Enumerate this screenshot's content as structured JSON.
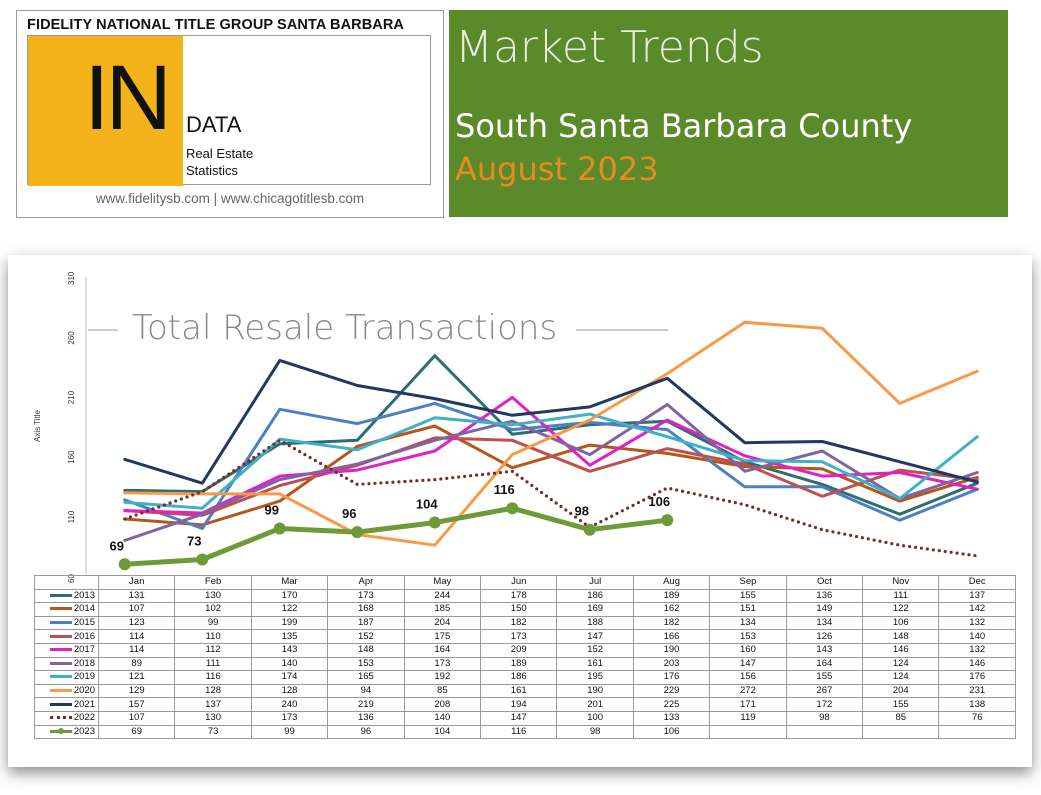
{
  "header": {
    "company": "FIDELITY NATIONAL TITLE GROUP SANTA BARBARA",
    "logo_big": "IN",
    "logo_word": "DATA",
    "logo_sub1": "Real Estate",
    "logo_sub2": "Statistics",
    "urls": "www.fidelitysb.com | www.chicagotitlesb.com",
    "title": "Market Trends",
    "region": "South Santa Barbara County",
    "month": "August 2023",
    "colors": {
      "logo_yellow": "#f4b31a",
      "title_green": "#5a8a2a",
      "month_orange": "#e88a22"
    }
  },
  "chart_data": {
    "type": "line",
    "title": "Total Resale Transactions",
    "ylabel": "Axis Title",
    "xlabel": "",
    "ylim": [
      60,
      310
    ],
    "yticks": [
      60,
      110,
      160,
      210,
      260,
      310
    ],
    "grid": false,
    "legend": "table-below",
    "categories": [
      "Jan",
      "Feb",
      "Mar",
      "Apr",
      "May",
      "Jun",
      "Jul",
      "Aug",
      "Sep",
      "Oct",
      "Nov",
      "Dec"
    ],
    "series": [
      {
        "name": "2013",
        "color": "#2e6e6e",
        "style": "solid",
        "values": [
          131,
          130,
          170,
          173,
          244,
          178,
          186,
          189,
          155,
          136,
          111,
          137
        ]
      },
      {
        "name": "2014",
        "color": "#b5561a",
        "style": "solid",
        "values": [
          107,
          102,
          122,
          168,
          185,
          150,
          169,
          162,
          151,
          149,
          122,
          142
        ]
      },
      {
        "name": "2015",
        "color": "#4d7fc4",
        "style": "solid",
        "values": [
          123,
          99,
          199,
          187,
          204,
          182,
          188,
          182,
          134,
          134,
          106,
          132
        ]
      },
      {
        "name": "2016",
        "color": "#c0504d",
        "style": "solid",
        "values": [
          114,
          110,
          135,
          152,
          175,
          173,
          147,
          166,
          153,
          126,
          148,
          140
        ]
      },
      {
        "name": "2017",
        "color": "#e020c8",
        "style": "solid",
        "values": [
          114,
          112,
          143,
          148,
          164,
          209,
          152,
          190,
          160,
          143,
          146,
          132
        ]
      },
      {
        "name": "2018",
        "color": "#8064a2",
        "style": "solid",
        "values": [
          89,
          111,
          140,
          153,
          173,
          189,
          161,
          203,
          147,
          164,
          124,
          146
        ]
      },
      {
        "name": "2019",
        "color": "#3fb0c8",
        "style": "solid",
        "values": [
          121,
          116,
          174,
          165,
          192,
          186,
          195,
          176,
          156,
          155,
          124,
          176
        ]
      },
      {
        "name": "2020",
        "color": "#f79a46",
        "style": "solid",
        "values": [
          129,
          128,
          128,
          94,
          85,
          161,
          190,
          229,
          272,
          267,
          204,
          231
        ]
      },
      {
        "name": "2021",
        "color": "#1f3864",
        "style": "solid",
        "values": [
          157,
          137,
          240,
          219,
          208,
          194,
          201,
          225,
          171,
          172,
          155,
          138
        ]
      },
      {
        "name": "2022",
        "color": "#7b2a2a",
        "style": "dotted",
        "values": [
          107,
          130,
          173,
          136,
          140,
          147,
          100,
          133,
          119,
          98,
          85,
          76
        ]
      },
      {
        "name": "2023",
        "color": "#6f9a3a",
        "style": "marker",
        "values": [
          69,
          73,
          99,
          96,
          104,
          116,
          98,
          106,
          null,
          null,
          null,
          null
        ]
      }
    ],
    "annotations": [
      "69",
      "73",
      "99",
      "96",
      "104",
      "116",
      "98",
      "106"
    ]
  }
}
